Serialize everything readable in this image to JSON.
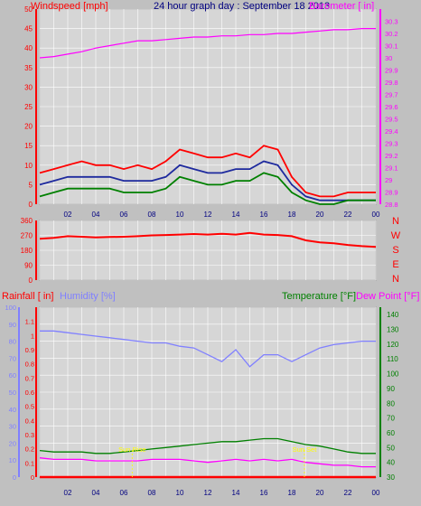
{
  "header": {
    "left_label": "Windspeed [mph]",
    "center_label": "24 hour graph day : September 18 2013",
    "right_label": "Barometer [ in]"
  },
  "colors": {
    "background": "#c0c0c0",
    "plot_bg": "#d6d6d6",
    "grid": "#ffffff",
    "wind_gust": "#ff0000",
    "wind_avg": "#1e2a9e",
    "wind_speed": "#008000",
    "barometer": "#ff00ff",
    "wind_dir": "#ff0000",
    "humidity": "#8080ff",
    "temperature": "#008000",
    "dew_point": "#ff00ff",
    "rainfall": "#ff0000",
    "title_blue": "#000080",
    "sun_label": "#ffff00"
  },
  "time_ticks": [
    "02",
    "04",
    "06",
    "08",
    "10",
    "12",
    "14",
    "16",
    "18",
    "20",
    "22",
    "00"
  ],
  "chart_data": [
    {
      "type": "line",
      "name": "wind-barometer",
      "title": "24 hour graph day : September 18 2013",
      "ylabel_left": "Windspeed [mph]",
      "ylabel_right": "Barometer [ in]",
      "ylim_left": [
        0,
        50
      ],
      "yticks_left": [
        "0",
        "5",
        "10",
        "15",
        "20",
        "25",
        "30",
        "35",
        "40",
        "45",
        "50"
      ],
      "ylim_right": [
        28.8,
        30.4
      ],
      "yticks_right": [
        "28.8",
        "28.9",
        "29",
        "29.1",
        "29.2",
        "29.3",
        "29.4",
        "29.5",
        "29.6",
        "29.7",
        "29.8",
        "29.9",
        "30",
        "30.1",
        "30.2",
        "30.3"
      ],
      "x_hours": [
        0,
        1,
        2,
        3,
        4,
        5,
        6,
        7,
        8,
        9,
        10,
        11,
        12,
        13,
        14,
        15,
        16,
        17,
        18,
        19,
        20,
        21,
        22,
        23,
        24
      ],
      "series": [
        {
          "key": "gust",
          "axis": "left",
          "values": [
            8,
            9,
            10,
            11,
            10,
            10,
            9,
            10,
            9,
            11,
            14,
            13,
            12,
            12,
            13,
            12,
            15,
            14,
            7,
            3,
            2,
            2,
            3,
            3,
            3
          ]
        },
        {
          "key": "average",
          "axis": "left",
          "values": [
            5,
            6,
            7,
            7,
            7,
            7,
            6,
            6,
            6,
            7,
            10,
            9,
            8,
            8,
            9,
            9,
            11,
            10,
            5,
            2,
            1,
            1,
            1,
            1,
            1
          ]
        },
        {
          "key": "speed",
          "axis": "left",
          "values": [
            2,
            3,
            4,
            4,
            4,
            4,
            3,
            3,
            3,
            4,
            7,
            6,
            5,
            5,
            6,
            6,
            8,
            7,
            3,
            1,
            0,
            0,
            1,
            1,
            1
          ]
        },
        {
          "key": "barometer",
          "axis": "right",
          "values": [
            30.0,
            30.01,
            30.03,
            30.05,
            30.08,
            30.1,
            30.12,
            30.14,
            30.14,
            30.15,
            30.16,
            30.17,
            30.17,
            30.18,
            30.18,
            30.19,
            30.19,
            30.2,
            30.2,
            30.21,
            30.22,
            30.23,
            30.23,
            30.24,
            30.24
          ]
        }
      ]
    },
    {
      "type": "line",
      "name": "wind-direction",
      "ylim": [
        0,
        360
      ],
      "yticks": [
        "0",
        "90",
        "180",
        "270",
        "360"
      ],
      "compass": [
        "N",
        "W",
        "S",
        "E",
        "N"
      ],
      "x_hours": [
        0,
        1,
        2,
        3,
        4,
        5,
        6,
        7,
        8,
        9,
        10,
        11,
        12,
        13,
        14,
        15,
        16,
        17,
        18,
        19,
        20,
        21,
        22,
        23,
        24
      ],
      "series": [
        {
          "key": "direction",
          "values": [
            250,
            255,
            265,
            262,
            258,
            260,
            262,
            265,
            270,
            272,
            275,
            278,
            275,
            280,
            275,
            285,
            275,
            272,
            265,
            240,
            228,
            222,
            212,
            205,
            200
          ]
        }
      ]
    },
    {
      "type": "line",
      "name": "rain-humidity-temp",
      "ylabel_rain": "Rainfall [ in]",
      "ylabel_humidity": "Humidity [%]",
      "ylabel_temp": "Temperature [°F]",
      "ylabel_dew": "Dew Point [°F]",
      "ylim_humidity": [
        0,
        100
      ],
      "yticks_humidity": [
        "0",
        "10",
        "20",
        "30",
        "40",
        "50",
        "60",
        "70",
        "80",
        "90",
        "100"
      ],
      "ylim_rain": [
        0,
        1.2
      ],
      "yticks_rain": [
        "0",
        "0.1",
        "0.2",
        "0.3",
        "0.4",
        "0.5",
        "0.6",
        "0.7",
        "0.8",
        "0.9",
        "1",
        "1.1"
      ],
      "ylim_temp": [
        30,
        145
      ],
      "yticks_temp": [
        "30",
        "40",
        "50",
        "60",
        "70",
        "80",
        "90",
        "100",
        "110",
        "120",
        "130",
        "140"
      ],
      "annotations": [
        {
          "text": "Sun Rise",
          "hour": 6.6
        },
        {
          "text": "Sun Set",
          "hour": 18.9
        }
      ],
      "x_hours": [
        0,
        1,
        2,
        3,
        4,
        5,
        6,
        7,
        8,
        9,
        10,
        11,
        12,
        13,
        14,
        15,
        16,
        17,
        18,
        19,
        20,
        21,
        22,
        23,
        24
      ],
      "series": [
        {
          "key": "humidity",
          "axis": "humidity",
          "values": [
            86,
            86,
            85,
            84,
            83,
            82,
            81,
            80,
            79,
            79,
            77,
            76,
            72,
            68,
            75,
            65,
            72,
            72,
            68,
            72,
            76,
            78,
            79,
            80,
            80
          ]
        },
        {
          "key": "temperature",
          "axis": "temp",
          "values": [
            48,
            47,
            47,
            47,
            46,
            46,
            47,
            48,
            49,
            50,
            51,
            52,
            53,
            54,
            54,
            55,
            56,
            56,
            54,
            52,
            51,
            49,
            47,
            46,
            46
          ]
        },
        {
          "key": "dew_point",
          "axis": "temp",
          "values": [
            43,
            42,
            42,
            42,
            41,
            41,
            41,
            41,
            42,
            42,
            42,
            41,
            40,
            41,
            42,
            41,
            42,
            41,
            42,
            40,
            39,
            38,
            38,
            37,
            37
          ]
        },
        {
          "key": "rainfall",
          "axis": "rain",
          "values": [
            0,
            0,
            0,
            0,
            0,
            0,
            0,
            0,
            0,
            0,
            0,
            0,
            0,
            0,
            0,
            0,
            0,
            0,
            0,
            0,
            0,
            0,
            0,
            0,
            0
          ]
        }
      ]
    }
  ]
}
